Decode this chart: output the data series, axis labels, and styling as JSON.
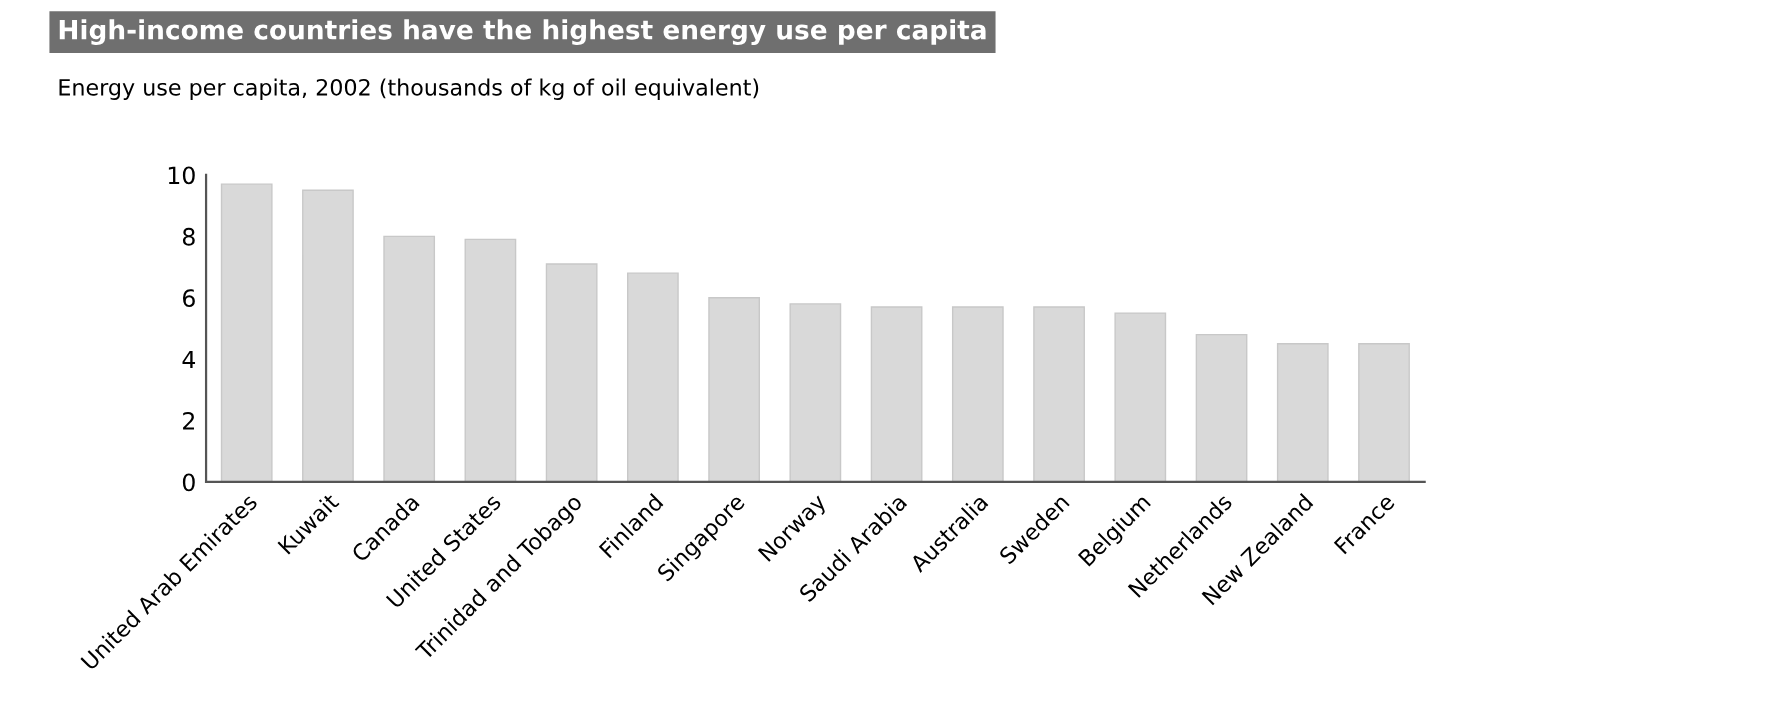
{
  "chart_data": {
    "type": "bar",
    "title": "High-income countries have the highest energy use per capita",
    "subtitle": "Energy use per capita, 2002 (thousands of kg of oil equivalent)",
    "categories": [
      "United Arab Emirates",
      "Kuwait",
      "Canada",
      "United States",
      "Trinidad and Tobago",
      "Finland",
      "Singapore",
      "Norway",
      "Saudi Arabia",
      "Australia",
      "Sweden",
      "Belgium",
      "Netherlands",
      "New Zealand",
      "France"
    ],
    "values": [
      9.7,
      9.5,
      8.0,
      7.9,
      7.1,
      6.8,
      6.0,
      5.8,
      5.7,
      5.7,
      5.7,
      5.5,
      4.8,
      4.5,
      4.5
    ],
    "color": "#d9d9d9",
    "ylim": [
      0,
      10
    ],
    "yticks": [
      0,
      2,
      4,
      6,
      8,
      10
    ],
    "grid": false
  }
}
